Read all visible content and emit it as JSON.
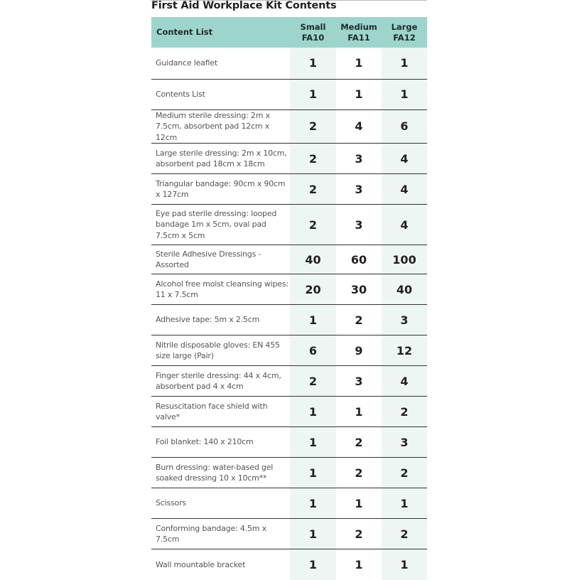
{
  "title": "First Aid Workplace Kit Contents",
  "colors": {
    "header_bg": "#9dd5cc",
    "shaded_column": "#eef6f4"
  },
  "header": {
    "content": "Content List",
    "cols": [
      [
        "Small",
        "FA10"
      ],
      [
        "Medium",
        "FA11"
      ],
      [
        "Large",
        "FA12"
      ]
    ]
  },
  "rows": [
    {
      "item": "Guidance leaflet",
      "values": [
        "1",
        "1",
        "1"
      ]
    },
    {
      "item": "Contents List",
      "values": [
        "1",
        "1",
        "1"
      ]
    },
    {
      "item": "Medium sterile dressing: 2m x 7.5cm, absorbent pad 12cm x 12cm",
      "values": [
        "2",
        "4",
        "6"
      ]
    },
    {
      "item": "Large sterile dressing: 2m x 10cm, absorbent pad 18cm x 18cm",
      "values": [
        "2",
        "3",
        "4"
      ]
    },
    {
      "item": "Triangular bandage: 90cm x 90cm x 127cm",
      "values": [
        "2",
        "3",
        "4"
      ]
    },
    {
      "item": "Eye pad sterile dressing: looped bandage 1m x 5cm, oval pad 7.5cm x 5cm",
      "values": [
        "2",
        "3",
        "4"
      ]
    },
    {
      "item": "Sterile Adhesive Dressings - Assorted",
      "values": [
        "40",
        "60",
        "100"
      ]
    },
    {
      "item": "Alcohol free moist cleansing wipes: 11 x 7.5cm",
      "values": [
        "20",
        "30",
        "40"
      ]
    },
    {
      "item": "Adhesive tape: 5m x 2.5cm",
      "values": [
        "1",
        "2",
        "3"
      ]
    },
    {
      "item": "Nitrile disposable gloves: EN 455 size large  (Pair)",
      "values": [
        "6",
        "9",
        "12"
      ]
    },
    {
      "item": "Finger sterile dressing: 44 x 4cm, absorbent pad 4 x 4cm",
      "values": [
        "2",
        "3",
        "4"
      ]
    },
    {
      "item": "Resuscitation face shield with valve*",
      "values": [
        "1",
        "1",
        "2"
      ]
    },
    {
      "item": "Foil blanket: 140 x 210cm",
      "values": [
        "1",
        "2",
        "3"
      ]
    },
    {
      "item": "Burn dressing: water-based gel soaked dressing 10 x 10cm**",
      "values": [
        "1",
        "2",
        "2"
      ]
    },
    {
      "item": "Scissors",
      "values": [
        "1",
        "1",
        "1"
      ]
    },
    {
      "item": "Conforming bandage: 4.5m x 7.5cm",
      "values": [
        "1",
        "2",
        "2"
      ]
    },
    {
      "item": "Wall mountable bracket",
      "values": [
        "1",
        "1",
        "1"
      ]
    }
  ]
}
